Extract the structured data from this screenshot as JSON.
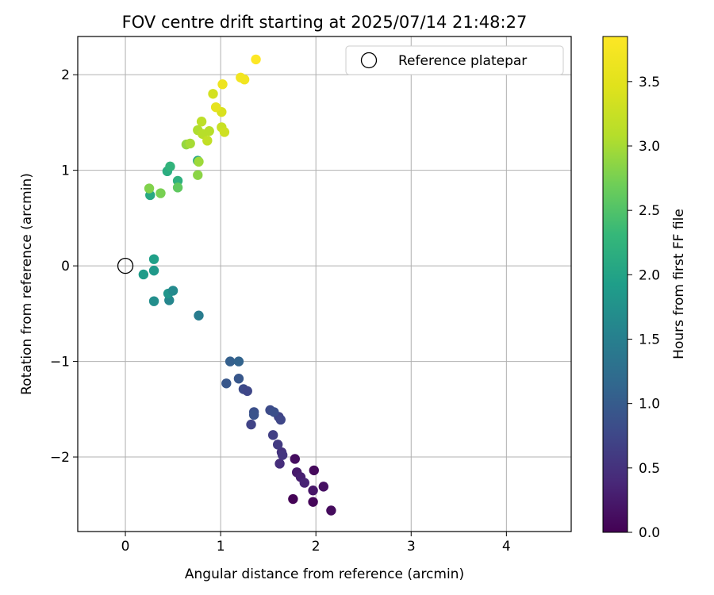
{
  "chart_data": {
    "type": "scatter",
    "title": "FOV centre drift starting at 2025/07/14 21:48:27",
    "xlabel": "Angular distance from reference (arcmin)",
    "ylabel": "Rotation from reference (arcmin)",
    "xlim": [
      -0.5,
      4.68
    ],
    "ylim": [
      -2.78,
      2.4
    ],
    "xticks": [
      0,
      1,
      2,
      3,
      4
    ],
    "xtick_labels": [
      "0",
      "1",
      "2",
      "3",
      "4"
    ],
    "yticks": [
      -2,
      -1,
      0,
      1,
      2
    ],
    "ytick_labels": [
      "−2",
      "−1",
      "0",
      "1",
      "2"
    ],
    "grid": true,
    "legend": {
      "position": "top-right",
      "entries": [
        "Reference platepar"
      ]
    },
    "reference_point": {
      "x": 0,
      "y": 0,
      "label": "Reference platepar"
    },
    "colorbar": {
      "label": "Hours from first FF file",
      "colormap": "viridis",
      "range": [
        0,
        3.85
      ],
      "ticks": [
        0.0,
        0.5,
        1.0,
        1.5,
        2.0,
        2.5,
        3.0,
        3.5
      ],
      "tick_labels": [
        "0.0",
        "0.5",
        "1.0",
        "1.5",
        "2.0",
        "2.5",
        "3.0",
        "3.5"
      ]
    },
    "series": [
      {
        "points": [
          {
            "x": 1.76,
            "y": -2.44,
            "c": 0.02
          },
          {
            "x": 1.97,
            "y": -2.47,
            "c": 0.05
          },
          {
            "x": 2.16,
            "y": -2.56,
            "c": 0.1
          },
          {
            "x": 2.08,
            "y": -2.31,
            "c": 0.15
          },
          {
            "x": 1.97,
            "y": -2.35,
            "c": 0.2
          },
          {
            "x": 1.98,
            "y": -2.14,
            "c": 0.08
          },
          {
            "x": 1.78,
            "y": -2.02,
            "c": 0.12
          },
          {
            "x": 1.8,
            "y": -2.16,
            "c": 0.25
          },
          {
            "x": 1.84,
            "y": -2.21,
            "c": 0.3
          },
          {
            "x": 1.88,
            "y": -2.27,
            "c": 0.35
          },
          {
            "x": 1.62,
            "y": -2.07,
            "c": 0.45
          },
          {
            "x": 1.64,
            "y": -1.95,
            "c": 0.5
          },
          {
            "x": 1.65,
            "y": -1.98,
            "c": 0.55
          },
          {
            "x": 1.6,
            "y": -1.87,
            "c": 0.6
          },
          {
            "x": 1.55,
            "y": -1.77,
            "c": 0.65
          },
          {
            "x": 1.61,
            "y": -1.58,
            "c": 0.7
          },
          {
            "x": 1.63,
            "y": -1.61,
            "c": 0.75
          },
          {
            "x": 1.52,
            "y": -1.51,
            "c": 0.8
          },
          {
            "x": 1.56,
            "y": -1.53,
            "c": 0.85
          },
          {
            "x": 1.32,
            "y": -1.66,
            "c": 0.7
          },
          {
            "x": 1.35,
            "y": -1.53,
            "c": 0.85
          },
          {
            "x": 1.35,
            "y": -1.56,
            "c": 0.9
          },
          {
            "x": 1.24,
            "y": -1.29,
            "c": 0.8
          },
          {
            "x": 1.28,
            "y": -1.31,
            "c": 0.75
          },
          {
            "x": 1.19,
            "y": -1.18,
            "c": 0.95
          },
          {
            "x": 1.06,
            "y": -1.23,
            "c": 0.95
          },
          {
            "x": 1.1,
            "y": -1.0,
            "c": 1.05
          },
          {
            "x": 1.19,
            "y": -1.0,
            "c": 1.1
          },
          {
            "x": 0.77,
            "y": -0.52,
            "c": 1.45
          },
          {
            "x": 0.3,
            "y": -0.37,
            "c": 1.7
          },
          {
            "x": 0.46,
            "y": -0.36,
            "c": 1.6
          },
          {
            "x": 0.45,
            "y": -0.29,
            "c": 1.8
          },
          {
            "x": 0.5,
            "y": -0.26,
            "c": 1.65
          },
          {
            "x": 0.19,
            "y": -0.09,
            "c": 1.9
          },
          {
            "x": 0.3,
            "y": -0.05,
            "c": 1.85
          },
          {
            "x": 0.3,
            "y": 0.07,
            "c": 1.95
          },
          {
            "x": 0.26,
            "y": 0.74,
            "c": 2.1
          },
          {
            "x": 0.44,
            "y": 0.99,
            "c": 2.15
          },
          {
            "x": 0.47,
            "y": 1.04,
            "c": 2.25
          },
          {
            "x": 0.55,
            "y": 0.89,
            "c": 2.2
          },
          {
            "x": 0.76,
            "y": 1.1,
            "c": 2.05
          },
          {
            "x": 0.55,
            "y": 0.82,
            "c": 2.6
          },
          {
            "x": 0.37,
            "y": 0.76,
            "c": 2.75
          },
          {
            "x": 0.25,
            "y": 0.81,
            "c": 2.8
          },
          {
            "x": 0.76,
            "y": 0.95,
            "c": 2.85
          },
          {
            "x": 0.77,
            "y": 1.09,
            "c": 2.95
          },
          {
            "x": 0.64,
            "y": 1.27,
            "c": 2.9
          },
          {
            "x": 0.68,
            "y": 1.28,
            "c": 3.0
          },
          {
            "x": 0.76,
            "y": 1.42,
            "c": 3.05
          },
          {
            "x": 0.81,
            "y": 1.38,
            "c": 3.1
          },
          {
            "x": 0.8,
            "y": 1.51,
            "c": 3.15
          },
          {
            "x": 0.86,
            "y": 1.31,
            "c": 3.2
          },
          {
            "x": 0.88,
            "y": 1.41,
            "c": 3.1
          },
          {
            "x": 1.01,
            "y": 1.45,
            "c": 3.25
          },
          {
            "x": 1.04,
            "y": 1.4,
            "c": 3.3
          },
          {
            "x": 1.01,
            "y": 1.61,
            "c": 3.4
          },
          {
            "x": 0.92,
            "y": 1.8,
            "c": 3.35
          },
          {
            "x": 0.95,
            "y": 1.66,
            "c": 3.55
          },
          {
            "x": 1.02,
            "y": 1.9,
            "c": 3.65
          },
          {
            "x": 1.21,
            "y": 1.97,
            "c": 3.7
          },
          {
            "x": 1.25,
            "y": 1.95,
            "c": 3.7
          },
          {
            "x": 1.37,
            "y": 2.16,
            "c": 3.85
          }
        ]
      }
    ]
  }
}
